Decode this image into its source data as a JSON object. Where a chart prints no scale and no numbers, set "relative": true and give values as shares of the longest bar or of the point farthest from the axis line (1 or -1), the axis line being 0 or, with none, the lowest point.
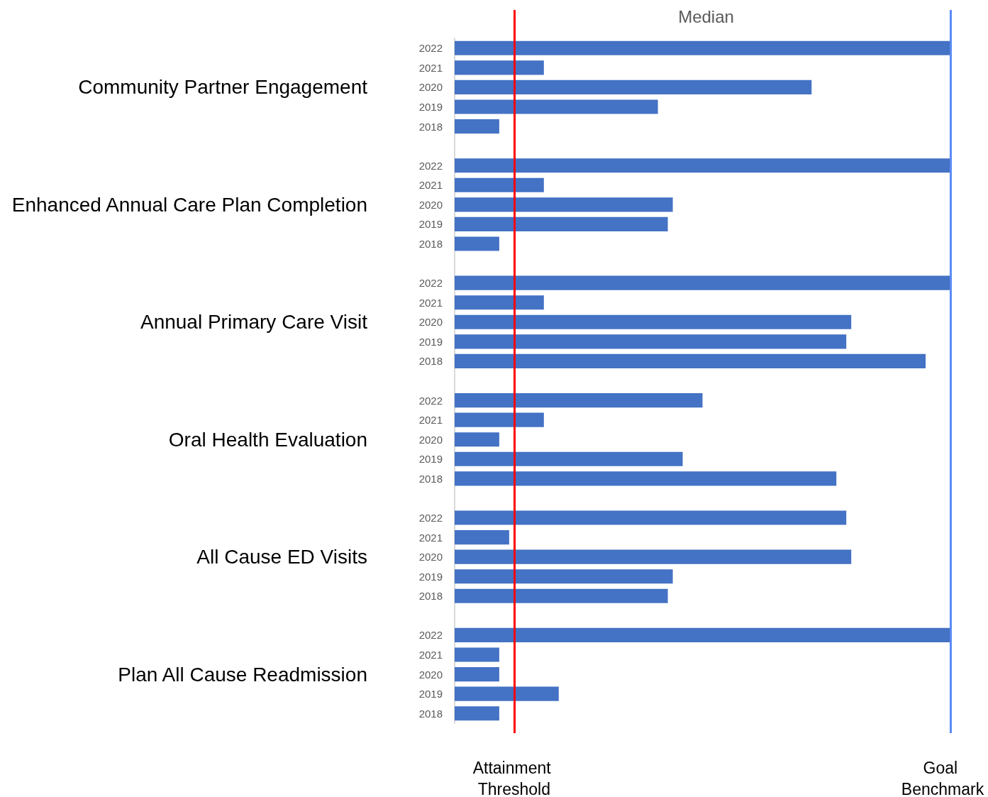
{
  "chart_data": {
    "type": "bar",
    "orientation": "horizontal",
    "relative": true,
    "title": "Median",
    "color": "#4472c4",
    "categories": [
      "2022",
      "2021",
      "2020",
      "2019",
      "2018",
      null,
      "2022",
      "2021",
      "2020",
      "2019",
      "2018",
      null,
      "2022",
      "2021",
      "2020",
      "2019",
      "2018",
      null,
      "2022",
      "2021",
      "2020",
      "2019",
      "2018",
      null,
      "2022",
      "2021",
      "2020",
      "2019",
      "2018",
      null,
      "2022",
      "2021",
      "2020",
      "2019",
      "2018"
    ],
    "values": [
      1,
      0.18,
      0.72,
      0.41,
      0.09,
      null,
      1,
      0.18,
      0.44,
      0.43,
      0.09,
      null,
      1,
      0.18,
      0.8,
      0.79,
      0.95,
      null,
      0.5,
      0.18,
      0.09,
      0.46,
      0.77,
      null,
      0.79,
      0.11,
      0.8,
      0.44,
      0.43,
      null,
      1,
      0.09,
      0.09,
      0.21,
      0.09
    ],
    "ref_lines": [
      {
        "axis": "x",
        "value": 0.12,
        "label": "Attainment Threshold",
        "color": "#ff0000"
      },
      {
        "axis": "x",
        "value": 1,
        "label": "Goal Benchmark",
        "color": "#5b8cf5"
      }
    ],
    "annotations": [
      "Community Partner Engagement",
      "Enhanced Annual Care Plan Completion",
      "Annual Primary Care Visit",
      "Oral Health Evaluation",
      "All Cause ED Visits",
      "Plan All Cause Readmission"
    ]
  }
}
